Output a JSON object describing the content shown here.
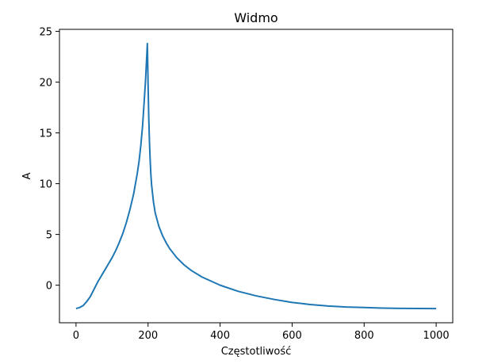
{
  "chart_data": {
    "type": "line",
    "title": "Widmo",
    "xlabel": "Częstotliwość",
    "ylabel": "A",
    "xlim": [
      -46,
      1046
    ],
    "ylim": [
      -3.7,
      25.2
    ],
    "xticks": [
      0,
      200,
      400,
      600,
      800,
      1000
    ],
    "yticks": [
      0,
      5,
      10,
      15,
      20,
      25
    ],
    "grid": false,
    "line_color": "#1f77b4",
    "series": [
      {
        "x": [
          0,
          10,
          20,
          30,
          40,
          50,
          60,
          70,
          80,
          90,
          100,
          110,
          120,
          130,
          140,
          150,
          160,
          170,
          175,
          180,
          185,
          190,
          193,
          195,
          197,
          198,
          199,
          200,
          202,
          204,
          206,
          208,
          210,
          215,
          220,
          230,
          240,
          250,
          260,
          280,
          300,
          320,
          350,
          400,
          450,
          500,
          550,
          600,
          650,
          700,
          750,
          800,
          850,
          900,
          950,
          1000
        ],
        "y": [
          -2.3,
          -2.2,
          -2.0,
          -1.6,
          -1.1,
          -0.4,
          0.3,
          0.9,
          1.5,
          2.1,
          2.7,
          3.4,
          4.2,
          5.1,
          6.2,
          7.5,
          9.0,
          11.0,
          12.2,
          13.8,
          15.8,
          18.5,
          20.2,
          21.6,
          23.0,
          23.8,
          22.0,
          19.8,
          16.5,
          14.0,
          12.2,
          10.8,
          9.8,
          8.2,
          7.1,
          5.8,
          4.9,
          4.2,
          3.6,
          2.7,
          2.0,
          1.45,
          0.8,
          0.0,
          -0.6,
          -1.05,
          -1.4,
          -1.7,
          -1.9,
          -2.05,
          -2.15,
          -2.2,
          -2.25,
          -2.28,
          -2.29,
          -2.3
        ]
      }
    ]
  }
}
